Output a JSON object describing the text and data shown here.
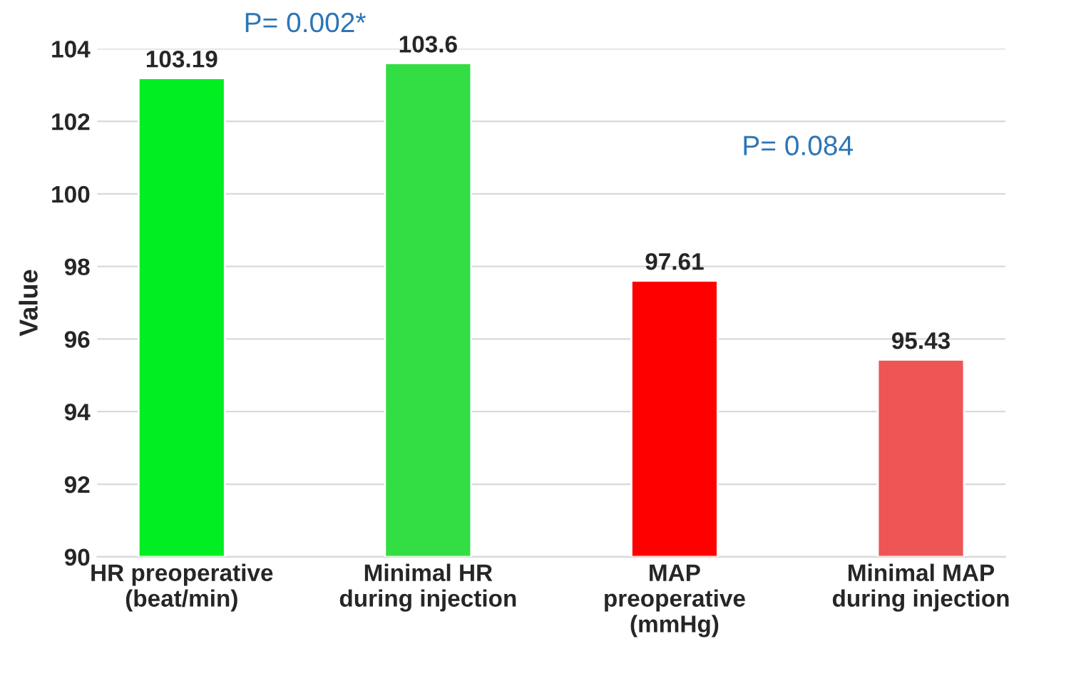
{
  "chart_data": {
    "type": "bar",
    "ylabel": "Value",
    "categories": [
      "HR preoperative\n(beat/min)",
      "Minimal HR\nduring injection",
      "MAP\npreoperative\n(mmHg)",
      "Minimal MAP\nduring injection"
    ],
    "values": [
      103.19,
      103.6,
      97.61,
      95.43
    ],
    "colors": [
      "#00ee22",
      "#33dd44",
      "#ff0000",
      "#ee5555"
    ],
    "ylim": [
      90,
      104
    ],
    "yticks": [
      90,
      92,
      94,
      96,
      98,
      100,
      102,
      104
    ],
    "grid": "y",
    "data_labels": true,
    "annotations": [
      "P= 0.002*",
      "P= 0.084"
    ]
  }
}
